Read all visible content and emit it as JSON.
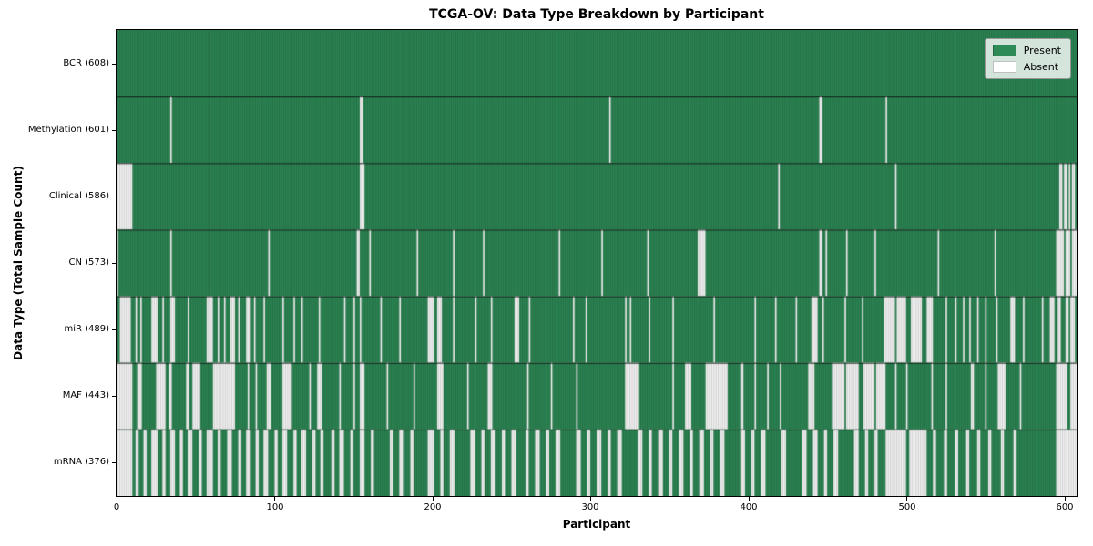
{
  "colors": {
    "present": "#2e8b57",
    "absent": "#ffffff",
    "bar_edge": "rgba(0,0,0,0.32)",
    "row_divider": "rgba(0,0,0,0.8)",
    "legend_border": "#999999"
  },
  "chart_data": {
    "type": "heatmap",
    "title": "TCGA-OV: Data Type Breakdown by Participant",
    "xlabel": "Participant",
    "ylabel": "Data Type (Total Sample Count)",
    "legend": {
      "present": "Present",
      "absent": "Absent"
    },
    "legend_position": "upper right",
    "grid": false,
    "n_participants": 608,
    "x_range": [
      0,
      608
    ],
    "x_ticks": [
      "0",
      "100",
      "200",
      "300",
      "400",
      "500",
      "600"
    ],
    "rows": [
      {
        "data_type": "BCR",
        "label": "BCR (608)",
        "present_count": 608,
        "absent_count": 0,
        "absent_ranges": []
      },
      {
        "data_type": "Methylation",
        "label": "Methylation (601)",
        "present_count": 601,
        "absent_count": 7,
        "absent_ranges": [
          [
            34,
            34
          ],
          [
            154,
            155
          ],
          [
            312,
            312
          ],
          [
            445,
            446
          ],
          [
            487,
            487
          ]
        ]
      },
      {
        "data_type": "Clinical",
        "label": "Clinical (586)",
        "present_count": 586,
        "absent_count": 22,
        "absent_ranges": [
          [
            0,
            9
          ],
          [
            154,
            156
          ],
          [
            419,
            419
          ],
          [
            493,
            493
          ],
          [
            597,
            598
          ],
          [
            600,
            601
          ],
          [
            603,
            603
          ],
          [
            605,
            606
          ]
        ]
      },
      {
        "data_type": "CN",
        "label": "CN (573)",
        "present_count": 573,
        "absent_count": 35,
        "absent_ranges": [
          [
            0,
            0
          ],
          [
            34,
            34
          ],
          [
            96,
            96
          ],
          [
            152,
            153
          ],
          [
            160,
            160
          ],
          [
            190,
            190
          ],
          [
            213,
            213
          ],
          [
            232,
            232
          ],
          [
            280,
            280
          ],
          [
            307,
            307
          ],
          [
            336,
            336
          ],
          [
            368,
            372
          ],
          [
            445,
            446
          ],
          [
            449,
            449
          ],
          [
            462,
            462
          ],
          [
            480,
            480
          ],
          [
            520,
            520
          ],
          [
            556,
            556
          ],
          [
            595,
            599
          ],
          [
            601,
            603
          ],
          [
            605,
            607
          ]
        ]
      },
      {
        "data_type": "miR",
        "label": "miR (489)",
        "present_count": 489,
        "absent_count": 119,
        "absent_ranges": [
          [
            2,
            8
          ],
          [
            12,
            12
          ],
          [
            15,
            15
          ],
          [
            22,
            25
          ],
          [
            29,
            29
          ],
          [
            34,
            36
          ],
          [
            45,
            45
          ],
          [
            57,
            60
          ],
          [
            64,
            64
          ],
          [
            68,
            68
          ],
          [
            72,
            74
          ],
          [
            77,
            77
          ],
          [
            82,
            84
          ],
          [
            87,
            87
          ],
          [
            93,
            93
          ],
          [
            105,
            105
          ],
          [
            112,
            112
          ],
          [
            117,
            117
          ],
          [
            128,
            128
          ],
          [
            144,
            144
          ],
          [
            150,
            150
          ],
          [
            154,
            154
          ],
          [
            167,
            167
          ],
          [
            179,
            179
          ],
          [
            197,
            200
          ],
          [
            203,
            205
          ],
          [
            213,
            213
          ],
          [
            227,
            227
          ],
          [
            237,
            237
          ],
          [
            252,
            254
          ],
          [
            261,
            261
          ],
          [
            289,
            289
          ],
          [
            297,
            297
          ],
          [
            322,
            322
          ],
          [
            325,
            325
          ],
          [
            337,
            337
          ],
          [
            352,
            352
          ],
          [
            378,
            378
          ],
          [
            404,
            404
          ],
          [
            417,
            417
          ],
          [
            430,
            430
          ],
          [
            440,
            443
          ],
          [
            447,
            447
          ],
          [
            461,
            461
          ],
          [
            472,
            472
          ],
          [
            486,
            492
          ],
          [
            494,
            499
          ],
          [
            503,
            509
          ],
          [
            513,
            516
          ],
          [
            525,
            525
          ],
          [
            531,
            531
          ],
          [
            536,
            536
          ],
          [
            540,
            540
          ],
          [
            545,
            545
          ],
          [
            550,
            550
          ],
          [
            557,
            557
          ],
          [
            566,
            568
          ],
          [
            574,
            574
          ],
          [
            586,
            586
          ],
          [
            591,
            593
          ],
          [
            596,
            597
          ],
          [
            601,
            602
          ],
          [
            604,
            606
          ]
        ]
      },
      {
        "data_type": "MAF",
        "label": "MAF (443)",
        "present_count": 443,
        "absent_count": 165,
        "absent_ranges": [
          [
            0,
            9
          ],
          [
            13,
            15
          ],
          [
            25,
            30
          ],
          [
            33,
            34
          ],
          [
            44,
            45
          ],
          [
            48,
            52
          ],
          [
            61,
            74
          ],
          [
            83,
            83
          ],
          [
            88,
            88
          ],
          [
            95,
            97
          ],
          [
            105,
            110
          ],
          [
            122,
            122
          ],
          [
            127,
            129
          ],
          [
            141,
            141
          ],
          [
            150,
            150
          ],
          [
            154,
            156
          ],
          [
            171,
            171
          ],
          [
            188,
            188
          ],
          [
            203,
            206
          ],
          [
            222,
            222
          ],
          [
            235,
            237
          ],
          [
            260,
            260
          ],
          [
            275,
            275
          ],
          [
            291,
            291
          ],
          [
            322,
            330
          ],
          [
            352,
            352
          ],
          [
            360,
            363
          ],
          [
            373,
            386
          ],
          [
            395,
            396
          ],
          [
            404,
            404
          ],
          [
            412,
            412
          ],
          [
            420,
            420
          ],
          [
            438,
            441
          ],
          [
            453,
            460
          ],
          [
            462,
            469
          ],
          [
            473,
            479
          ],
          [
            481,
            486
          ],
          [
            493,
            493
          ],
          [
            500,
            500
          ],
          [
            516,
            516
          ],
          [
            525,
            525
          ],
          [
            541,
            542
          ],
          [
            550,
            550
          ],
          [
            558,
            562
          ],
          [
            572,
            572
          ],
          [
            595,
            601
          ],
          [
            604,
            607
          ]
        ]
      },
      {
        "data_type": "mRNA",
        "label": "mRNA (376)",
        "present_count": 376,
        "absent_count": 232,
        "absent_ranges": [
          [
            0,
            9
          ],
          [
            12,
            13
          ],
          [
            17,
            18
          ],
          [
            22,
            25
          ],
          [
            29,
            30
          ],
          [
            34,
            36
          ],
          [
            40,
            41
          ],
          [
            45,
            47
          ],
          [
            52,
            53
          ],
          [
            57,
            60
          ],
          [
            64,
            65
          ],
          [
            70,
            72
          ],
          [
            77,
            78
          ],
          [
            82,
            84
          ],
          [
            88,
            89
          ],
          [
            93,
            95
          ],
          [
            100,
            101
          ],
          [
            105,
            107
          ],
          [
            112,
            113
          ],
          [
            117,
            119
          ],
          [
            124,
            125
          ],
          [
            129,
            130
          ],
          [
            136,
            137
          ],
          [
            141,
            143
          ],
          [
            148,
            149
          ],
          [
            154,
            156
          ],
          [
            161,
            162
          ],
          [
            173,
            174
          ],
          [
            179,
            181
          ],
          [
            186,
            187
          ],
          [
            197,
            200
          ],
          [
            205,
            206
          ],
          [
            211,
            213
          ],
          [
            224,
            226
          ],
          [
            231,
            232
          ],
          [
            237,
            239
          ],
          [
            244,
            245
          ],
          [
            250,
            252
          ],
          [
            259,
            260
          ],
          [
            265,
            267
          ],
          [
            272,
            273
          ],
          [
            278,
            280
          ],
          [
            291,
            293
          ],
          [
            298,
            299
          ],
          [
            304,
            306
          ],
          [
            311,
            312
          ],
          [
            317,
            319
          ],
          [
            330,
            332
          ],
          [
            337,
            338
          ],
          [
            343,
            345
          ],
          [
            350,
            351
          ],
          [
            356,
            358
          ],
          [
            363,
            364
          ],
          [
            369,
            371
          ],
          [
            376,
            377
          ],
          [
            382,
            384
          ],
          [
            395,
            397
          ],
          [
            402,
            403
          ],
          [
            408,
            410
          ],
          [
            421,
            423
          ],
          [
            434,
            436
          ],
          [
            441,
            443
          ],
          [
            448,
            449
          ],
          [
            454,
            456
          ],
          [
            467,
            469
          ],
          [
            474,
            475
          ],
          [
            480,
            481
          ],
          [
            487,
            499
          ],
          [
            502,
            512
          ],
          [
            517,
            518
          ],
          [
            524,
            525
          ],
          [
            531,
            532
          ],
          [
            538,
            539
          ],
          [
            545,
            546
          ],
          [
            552,
            553
          ],
          [
            560,
            561
          ],
          [
            568,
            569
          ],
          [
            595,
            607
          ]
        ]
      }
    ]
  }
}
